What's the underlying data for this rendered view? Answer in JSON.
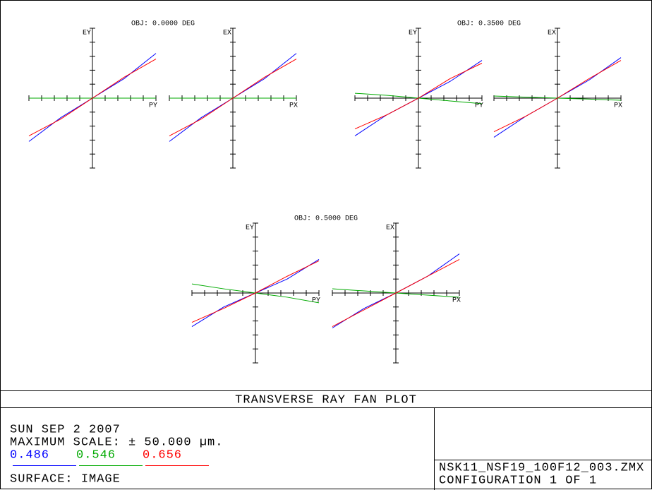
{
  "chart_data": [
    {
      "type": "line",
      "title": "OBJ: 0.0000 DEG",
      "ylabel": "EY",
      "xlabel": "PY",
      "x": [
        -1,
        -0.5,
        0,
        0.5,
        1
      ],
      "xlim": [
        -1,
        1
      ],
      "ylim": [
        -50,
        50
      ],
      "xticks": [
        -1,
        -0.8,
        -0.6,
        -0.4,
        -0.2,
        0,
        0.2,
        0.4,
        0.6,
        0.8,
        1
      ],
      "yticks": [
        -50,
        -40,
        -30,
        -20,
        -10,
        0,
        10,
        20,
        30,
        40,
        50
      ],
      "series": [
        {
          "name": "0.486",
          "color": "#0000ff",
          "values": [
            -31,
            -14,
            0,
            14,
            32
          ]
        },
        {
          "name": "0.546",
          "color": "#00aa00",
          "values": [
            0,
            0,
            0,
            0,
            0
          ]
        },
        {
          "name": "0.656",
          "color": "#ff0000",
          "values": [
            -27,
            -15,
            0,
            15,
            28
          ]
        }
      ]
    },
    {
      "type": "line",
      "ylabel": "EX",
      "xlabel": "PX",
      "x": [
        -1,
        -0.5,
        0,
        0.5,
        1
      ],
      "xlim": [
        -1,
        1
      ],
      "ylim": [
        -50,
        50
      ],
      "xticks": [
        -1,
        -0.8,
        -0.6,
        -0.4,
        -0.2,
        0,
        0.2,
        0.4,
        0.6,
        0.8,
        1
      ],
      "yticks": [
        -50,
        -40,
        -30,
        -20,
        -10,
        0,
        10,
        20,
        30,
        40,
        50
      ],
      "series": [
        {
          "name": "0.486",
          "color": "#0000ff",
          "values": [
            -31,
            -14,
            0,
            14,
            32
          ]
        },
        {
          "name": "0.546",
          "color": "#00aa00",
          "values": [
            0,
            0,
            0,
            0,
            0
          ]
        },
        {
          "name": "0.656",
          "color": "#ff0000",
          "values": [
            -27,
            -15,
            0,
            15,
            28
          ]
        }
      ]
    },
    {
      "type": "line",
      "title": "OBJ: 0.3500 DEG",
      "ylabel": "EY",
      "xlabel": "PY",
      "x": [
        -1,
        -0.5,
        0,
        0.5,
        1
      ],
      "xlim": [
        -1,
        1
      ],
      "ylim": [
        -50,
        50
      ],
      "xticks": [
        -1,
        -0.8,
        -0.6,
        -0.4,
        -0.2,
        0,
        0.2,
        0.4,
        0.6,
        0.8,
        1
      ],
      "yticks": [
        -50,
        -40,
        -30,
        -20,
        -10,
        0,
        10,
        20,
        30,
        40,
        50
      ],
      "series": [
        {
          "name": "0.486",
          "color": "#0000ff",
          "values": [
            -27,
            -12,
            0,
            12,
            27
          ]
        },
        {
          "name": "0.546",
          "color": "#00aa00",
          "values": [
            3.5,
            2,
            0,
            -2,
            -4
          ]
        },
        {
          "name": "0.656",
          "color": "#ff0000",
          "values": [
            -22,
            -12,
            0,
            14,
            25
          ]
        }
      ]
    },
    {
      "type": "line",
      "ylabel": "EX",
      "xlabel": "PX",
      "x": [
        -1,
        -0.5,
        0,
        0.5,
        1
      ],
      "xlim": [
        -1,
        1
      ],
      "ylim": [
        -50,
        50
      ],
      "xticks": [
        -1,
        -0.8,
        -0.6,
        -0.4,
        -0.2,
        0,
        0.2,
        0.4,
        0.6,
        0.8,
        1
      ],
      "yticks": [
        -50,
        -40,
        -30,
        -20,
        -10,
        0,
        10,
        20,
        30,
        40,
        50
      ],
      "series": [
        {
          "name": "0.486",
          "color": "#0000ff",
          "values": [
            -28,
            -13,
            0,
            13,
            29
          ]
        },
        {
          "name": "0.546",
          "color": "#00aa00",
          "values": [
            1.5,
            0.7,
            0,
            -0.7,
            -1.5
          ]
        },
        {
          "name": "0.656",
          "color": "#ff0000",
          "values": [
            -24,
            -13,
            0,
            14,
            27
          ]
        }
      ]
    },
    {
      "type": "line",
      "title": "OBJ: 0.5000 DEG",
      "ylabel": "EY",
      "xlabel": "PY",
      "x": [
        -1,
        -0.5,
        0,
        0.5,
        1
      ],
      "xlim": [
        -1,
        1
      ],
      "ylim": [
        -50,
        50
      ],
      "xticks": [
        -1,
        -0.8,
        -0.6,
        -0.4,
        -0.2,
        0,
        0.2,
        0.4,
        0.6,
        0.8,
        1
      ],
      "yticks": [
        -50,
        -40,
        -30,
        -20,
        -10,
        0,
        10,
        20,
        30,
        40,
        50
      ],
      "series": [
        {
          "name": "0.486",
          "color": "#0000ff",
          "values": [
            -24,
            -10,
            0,
            10,
            24
          ]
        },
        {
          "name": "0.546",
          "color": "#00aa00",
          "values": [
            6.5,
            3,
            0,
            -3,
            -7
          ]
        },
        {
          "name": "0.656",
          "color": "#ff0000",
          "values": [
            -21,
            -11,
            0,
            12,
            23
          ]
        }
      ]
    },
    {
      "type": "line",
      "ylabel": "EX",
      "xlabel": "PX",
      "x": [
        -1,
        -0.5,
        0,
        0.5,
        1
      ],
      "xlim": [
        -1,
        1
      ],
      "ylim": [
        -50,
        50
      ],
      "xticks": [
        -1,
        -0.8,
        -0.6,
        -0.4,
        -0.2,
        0,
        0.2,
        0.4,
        0.6,
        0.8,
        1
      ],
      "yticks": [
        -50,
        -40,
        -30,
        -20,
        -10,
        0,
        10,
        20,
        30,
        40,
        50
      ],
      "series": [
        {
          "name": "0.486",
          "color": "#0000ff",
          "values": [
            -25,
            -11,
            0,
            12,
            28
          ]
        },
        {
          "name": "0.546",
          "color": "#00aa00",
          "values": [
            3,
            1.5,
            0,
            -1.5,
            -3
          ]
        },
        {
          "name": "0.656",
          "color": "#ff0000",
          "values": [
            -24,
            -12,
            0,
            12,
            24
          ]
        }
      ]
    }
  ],
  "footer": {
    "title": "TRANSVERSE RAY FAN PLOT",
    "date": "SUN SEP 2 2007",
    "scale": "MAXIMUM SCALE: ± 50.000 µm.",
    "surface": "SURFACE: IMAGE",
    "file": "NSK11_NSF19_100F12_003.ZMX",
    "configuration": "CONFIGURATION 1 OF 1"
  }
}
